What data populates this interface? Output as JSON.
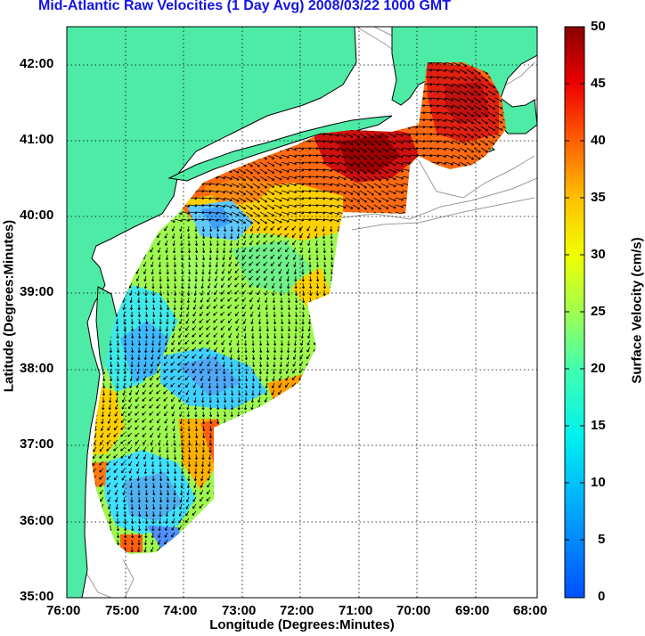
{
  "title": "Mid-Atlantic Raw Velocities (1 Day Avg) 2008/03/22 1000 GMT",
  "axes": {
    "xlabel": "Longitude (Degrees:Minutes)",
    "ylabel": "Latitude (Degrees:Minutes)",
    "x_ticks": [
      "76:00",
      "75:00",
      "74:00",
      "73:00",
      "72:00",
      "71:00",
      "70:00",
      "69:00",
      "68:00"
    ],
    "y_ticks": [
      "42:00",
      "41:00",
      "40:00",
      "39:00",
      "38:00",
      "37:00",
      "36:00",
      "35:00"
    ],
    "grid": "dotted"
  },
  "colorbar": {
    "label": "Surface Velocity (cm/s)",
    "ticks": [
      "50",
      "45",
      "40",
      "35",
      "30",
      "25",
      "20",
      "15",
      "10",
      "5",
      "0"
    ],
    "range": [
      0,
      50
    ],
    "colormap": "jet"
  },
  "colors": {
    "land": "#4deba5",
    "coast_outline": "#000000",
    "bathymetry": "#999999",
    "title": "#1414e6"
  }
}
